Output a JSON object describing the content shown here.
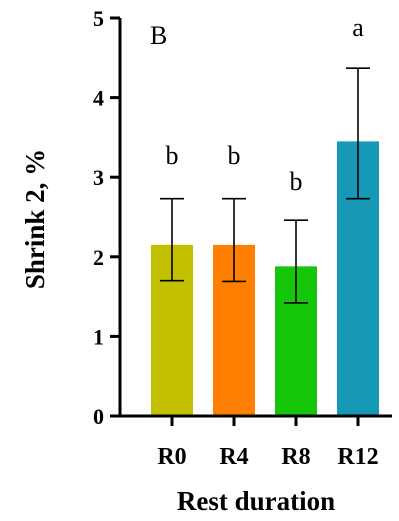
{
  "chart_data": {
    "type": "bar",
    "panel_label": "B",
    "xlabel": "Rest duration",
    "ylabel": "Shrink 2, %",
    "ylim": [
      0,
      5
    ],
    "yticks": [
      0,
      1,
      2,
      3,
      4,
      5
    ],
    "grid": false,
    "categories": [
      "R0",
      "R4",
      "R8",
      "R12"
    ],
    "values": [
      2.15,
      2.15,
      1.88,
      3.45
    ],
    "error_low": [
      1.7,
      1.69,
      1.42,
      2.73
    ],
    "error_high": [
      2.73,
      2.73,
      2.46,
      4.37
    ],
    "significance": [
      "b",
      "b",
      "b",
      "a"
    ],
    "colors": [
      "#c3c000",
      "#ff7f00",
      "#15c60b",
      "#1699b7"
    ]
  }
}
